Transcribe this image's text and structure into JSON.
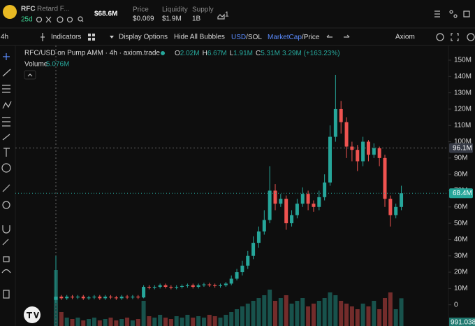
{
  "header": {
    "symbol": "RFC",
    "name": "Retard F...",
    "age": "25d",
    "market_cap": "$68.6M",
    "stats": [
      {
        "label": "Price",
        "value": "$0.069"
      },
      {
        "label": "Liquidity",
        "value": "$1.9M"
      },
      {
        "label": "Supply",
        "value": "1B"
      }
    ],
    "holders": "1"
  },
  "toolbar": {
    "interval": "4h",
    "indicators": "Indicators",
    "display_options": "Display Options",
    "hide_bubbles": "Hide All Bubbles",
    "currency": {
      "active": "USD",
      "separator": "/",
      "other": "SOL"
    },
    "mode": {
      "active": "MarketCap",
      "separator": "/",
      "other": "Price"
    },
    "theme": "Axiom"
  },
  "chart": {
    "title": "RFC/USD on Pump AMM · 4h · axiom.trade",
    "ohlc": [
      {
        "key": "O",
        "value": "2.02M"
      },
      {
        "key": "H",
        "value": "6.67M"
      },
      {
        "key": "L",
        "value": "1.91M"
      },
      {
        "key": "C",
        "value": "5.31M"
      }
    ],
    "change": "3.29M (+163.23%)",
    "volume_label": "Volume",
    "volume_value": "5.076M",
    "ylim": [
      -13,
      159
    ],
    "yticks": [
      0,
      {
        "value": 10,
        "label": "10M"
      },
      {
        "value": 20,
        "label": "20M"
      },
      {
        "value": 30,
        "label": "30M"
      },
      {
        "value": 40,
        "label": "40M"
      },
      {
        "value": 50,
        "label": "50M"
      },
      {
        "value": 60,
        "label": "60M"
      },
      {
        "value": 70,
        "label": "70M"
      },
      {
        "value": 80,
        "label": "80M"
      },
      {
        "value": 90,
        "label": "90M"
      },
      {
        "value": 100,
        "label": "100M"
      },
      {
        "value": 110,
        "label": "110M"
      },
      {
        "value": 120,
        "label": "120M"
      },
      {
        "value": 130,
        "label": "130M"
      },
      {
        "value": 140,
        "label": "140M"
      },
      {
        "value": 150,
        "label": "150M"
      }
    ],
    "crosshair": {
      "value": 96.1,
      "label": "96.1M"
    },
    "last_price": {
      "value": 68.4,
      "label": "68.4M"
    },
    "last_volume": {
      "value": 991.038,
      "label": "991.038K"
    },
    "up_color": "#26a69a",
    "down_color": "#ef5350",
    "open": [
      3,
      5,
      4,
      5,
      4.5,
      5,
      4,
      4.5,
      5,
      4,
      5,
      4.5,
      4,
      5,
      4.5,
      5,
      4.5,
      11,
      10.5,
      11,
      12,
      11,
      10.5,
      11,
      11.5,
      12,
      11,
      12,
      12.5,
      12,
      11.5,
      12,
      13,
      16,
      20,
      24,
      30,
      38,
      45,
      52,
      70,
      62,
      65,
      50,
      55,
      62,
      68,
      62,
      60,
      66,
      75,
      103,
      120,
      112,
      97,
      95,
      88,
      100,
      92,
      96,
      90,
      65,
      55,
      60
    ],
    "high": [
      30,
      6,
      6,
      6,
      6,
      6,
      5.5,
      6,
      6,
      6,
      6,
      5.5,
      6,
      6,
      6,
      6,
      12,
      12,
      12,
      13,
      13,
      12,
      12,
      12.5,
      13,
      13,
      13,
      13.5,
      13.5,
      13,
      13,
      14,
      18,
      22,
      27,
      33,
      42,
      48,
      58,
      85,
      74,
      68,
      67,
      58,
      65,
      72,
      70,
      64,
      70,
      80,
      110,
      141,
      125,
      115,
      100,
      98,
      103,
      101,
      99,
      97,
      92,
      67,
      62,
      73
    ],
    "low": [
      1,
      3,
      3,
      3.5,
      3.5,
      3,
      3,
      3.5,
      3,
      3,
      3.5,
      3,
      3,
      3.5,
      3.5,
      3.5,
      4,
      9.5,
      9.5,
      10,
      10,
      9.5,
      9.5,
      10,
      10.5,
      10,
      10,
      11,
      11,
      10.5,
      10.5,
      11,
      12,
      15,
      18,
      22,
      28,
      35,
      43,
      50,
      58,
      60,
      46,
      48,
      53,
      60,
      58,
      57,
      58,
      64,
      73,
      100,
      105,
      90,
      88,
      82,
      85,
      88,
      90,
      85,
      60,
      48,
      53,
      58
    ],
    "close": [
      5,
      4,
      5,
      4.5,
      5,
      4,
      4.5,
      5,
      4,
      5,
      4.5,
      4,
      5,
      4.5,
      5,
      4.5,
      11,
      10.5,
      11,
      12,
      11,
      10.5,
      11,
      11.5,
      12,
      11,
      12,
      12.5,
      12,
      11.5,
      12,
      13,
      16,
      20,
      24,
      30,
      38,
      45,
      52,
      70,
      62,
      65,
      50,
      55,
      62,
      68,
      62,
      60,
      66,
      75,
      103,
      120,
      112,
      97,
      95,
      88,
      100,
      92,
      96,
      90,
      65,
      55,
      60,
      68.4
    ],
    "volume": [
      2000,
      500,
      300,
      250,
      300,
      200,
      250,
      300,
      200,
      250,
      300,
      200,
      250,
      300,
      200,
      250,
      900,
      350,
      300,
      400,
      300,
      250,
      350,
      300,
      400,
      300,
      350,
      300,
      400,
      350,
      300,
      400,
      500,
      600,
      700,
      800,
      900,
      1000,
      1100,
      1300,
      900,
      1000,
      1100,
      800,
      900,
      1000,
      700,
      800,
      900,
      1000,
      1200,
      1100,
      900,
      800,
      700,
      600,
      800,
      700,
      900,
      600,
      1000,
      1200,
      600,
      991.038
    ]
  }
}
